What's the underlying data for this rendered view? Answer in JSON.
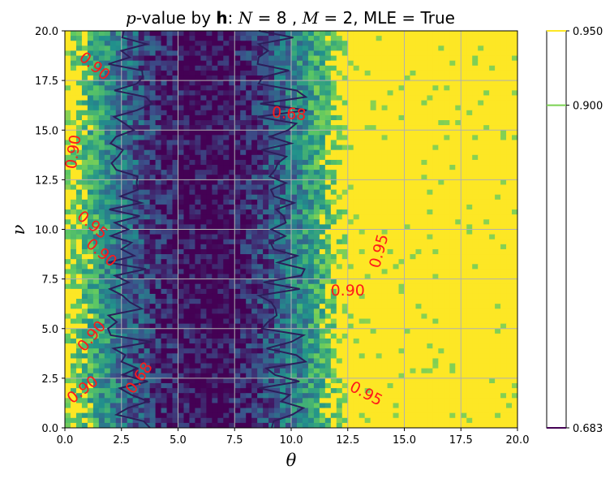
{
  "chart_data": {
    "type": "heatmap",
    "title": {
      "p1": "p",
      "p2": "-value by ",
      "p3": "h",
      "p4": ": ",
      "p5": "N",
      "p6": " = 8 , ",
      "p7": "M",
      "p8": " = 2, MLE = True"
    },
    "xlabel": "θ",
    "ylabel": "ν",
    "xlim": [
      0,
      20
    ],
    "ylim": [
      0,
      20
    ],
    "xticks": [
      "0.0",
      "2.5",
      "5.0",
      "7.5",
      "10.0",
      "12.5",
      "15.0",
      "17.5",
      "20.0"
    ],
    "yticks": [
      "0.0",
      "2.5",
      "5.0",
      "7.5",
      "10.0",
      "12.5",
      "15.0",
      "17.5",
      "20.0"
    ],
    "grid": true,
    "colorbar": {
      "ticks": [
        "0.683",
        "0.900",
        "0.950"
      ],
      "levels": [
        0.683,
        0.9,
        0.95
      ],
      "colors": [
        "#440154",
        "#7ad151",
        "#fde725"
      ]
    },
    "contour_levels": [
      0.683,
      0.9,
      0.95
    ],
    "contour_labels": [
      {
        "text": "0.90",
        "x": 1.3,
        "y": 18.2,
        "rot": 40
      },
      {
        "text": "0.68",
        "x": 9.9,
        "y": 15.8,
        "rot": 5
      },
      {
        "text": "0.90",
        "x": 0.4,
        "y": 13.9,
        "rot": -82
      },
      {
        "text": "0.95",
        "x": 1.2,
        "y": 10.2,
        "rot": 40
      },
      {
        "text": "0.90",
        "x": 1.6,
        "y": 8.8,
        "rot": 40
      },
      {
        "text": "0.95",
        "x": 13.9,
        "y": 8.9,
        "rot": -75
      },
      {
        "text": "0.90",
        "x": 12.5,
        "y": 6.9,
        "rot": 0
      },
      {
        "text": "0.90",
        "x": 1.2,
        "y": 4.6,
        "rot": -50
      },
      {
        "text": "0.90",
        "x": 0.8,
        "y": 1.9,
        "rot": -38
      },
      {
        "text": "0.68",
        "x": 3.3,
        "y": 2.5,
        "rot": -55
      },
      {
        "text": "0.95",
        "x": 13.3,
        "y": 1.7,
        "rot": 28
      }
    ]
  }
}
